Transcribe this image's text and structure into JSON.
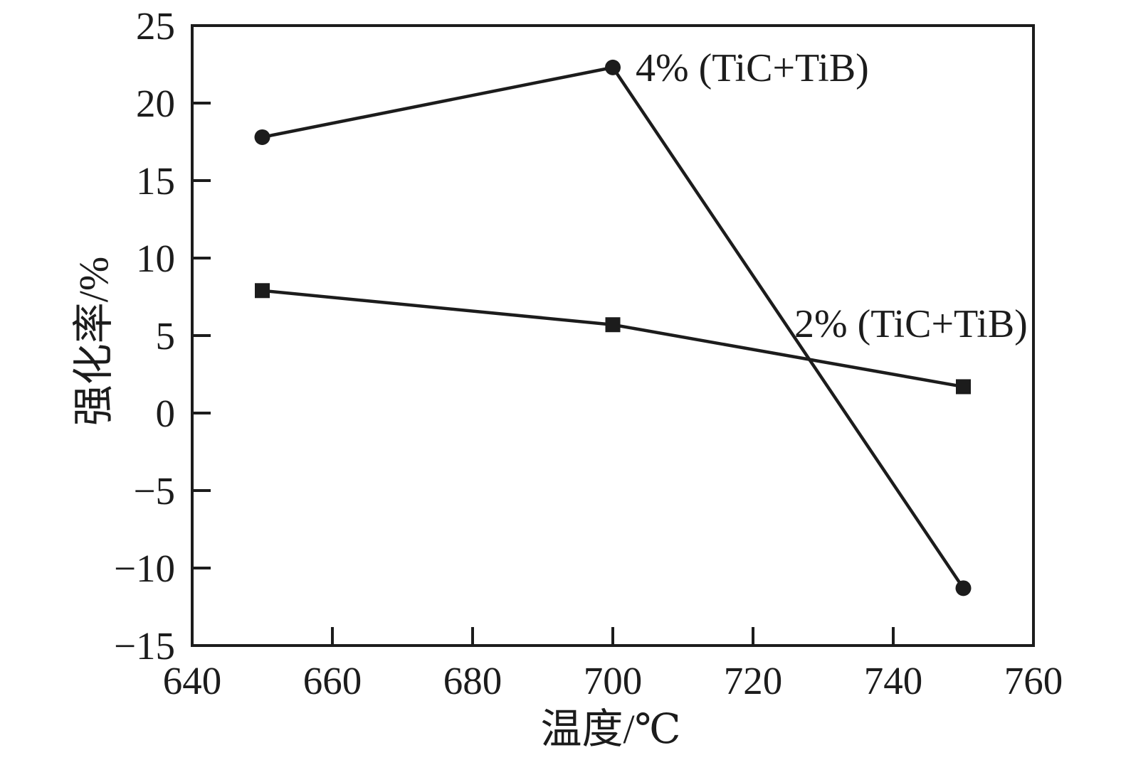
{
  "page": {
    "background": "#ffffff",
    "ink_color": "#1c1c1c"
  },
  "chart_data": {
    "type": "line",
    "title": "",
    "xlabel": "温度/℃",
    "ylabel": "强化率/%",
    "xlim": [
      640,
      760
    ],
    "ylim": [
      -15,
      25
    ],
    "x_ticks": [
      640,
      660,
      680,
      700,
      720,
      740,
      760
    ],
    "y_ticks": [
      25,
      20,
      15,
      10,
      5,
      0,
      -5,
      -10,
      -15
    ],
    "grid": false,
    "frame": "box",
    "tick_direction": "in",
    "legend_position": "inline-annotations",
    "series": [
      {
        "name": "4% (TiC+TiB)",
        "marker": "circle",
        "color": "#1c1c1c",
        "x": [
          650,
          700,
          750
        ],
        "values": [
          17.8,
          22.3,
          -11.3
        ]
      },
      {
        "name": "2% (TiC+TiB)",
        "marker": "square",
        "color": "#1c1c1c",
        "x": [
          650,
          700,
          750
        ],
        "values": [
          7.9,
          5.7,
          1.7
        ]
      }
    ],
    "annotations": [
      {
        "text": "4% (TiC+TiB)",
        "anchored_series": "4% (TiC+TiB)"
      },
      {
        "text": "2% (TiC+TiB)",
        "anchored_series": "2% (TiC+TiB)"
      }
    ]
  }
}
